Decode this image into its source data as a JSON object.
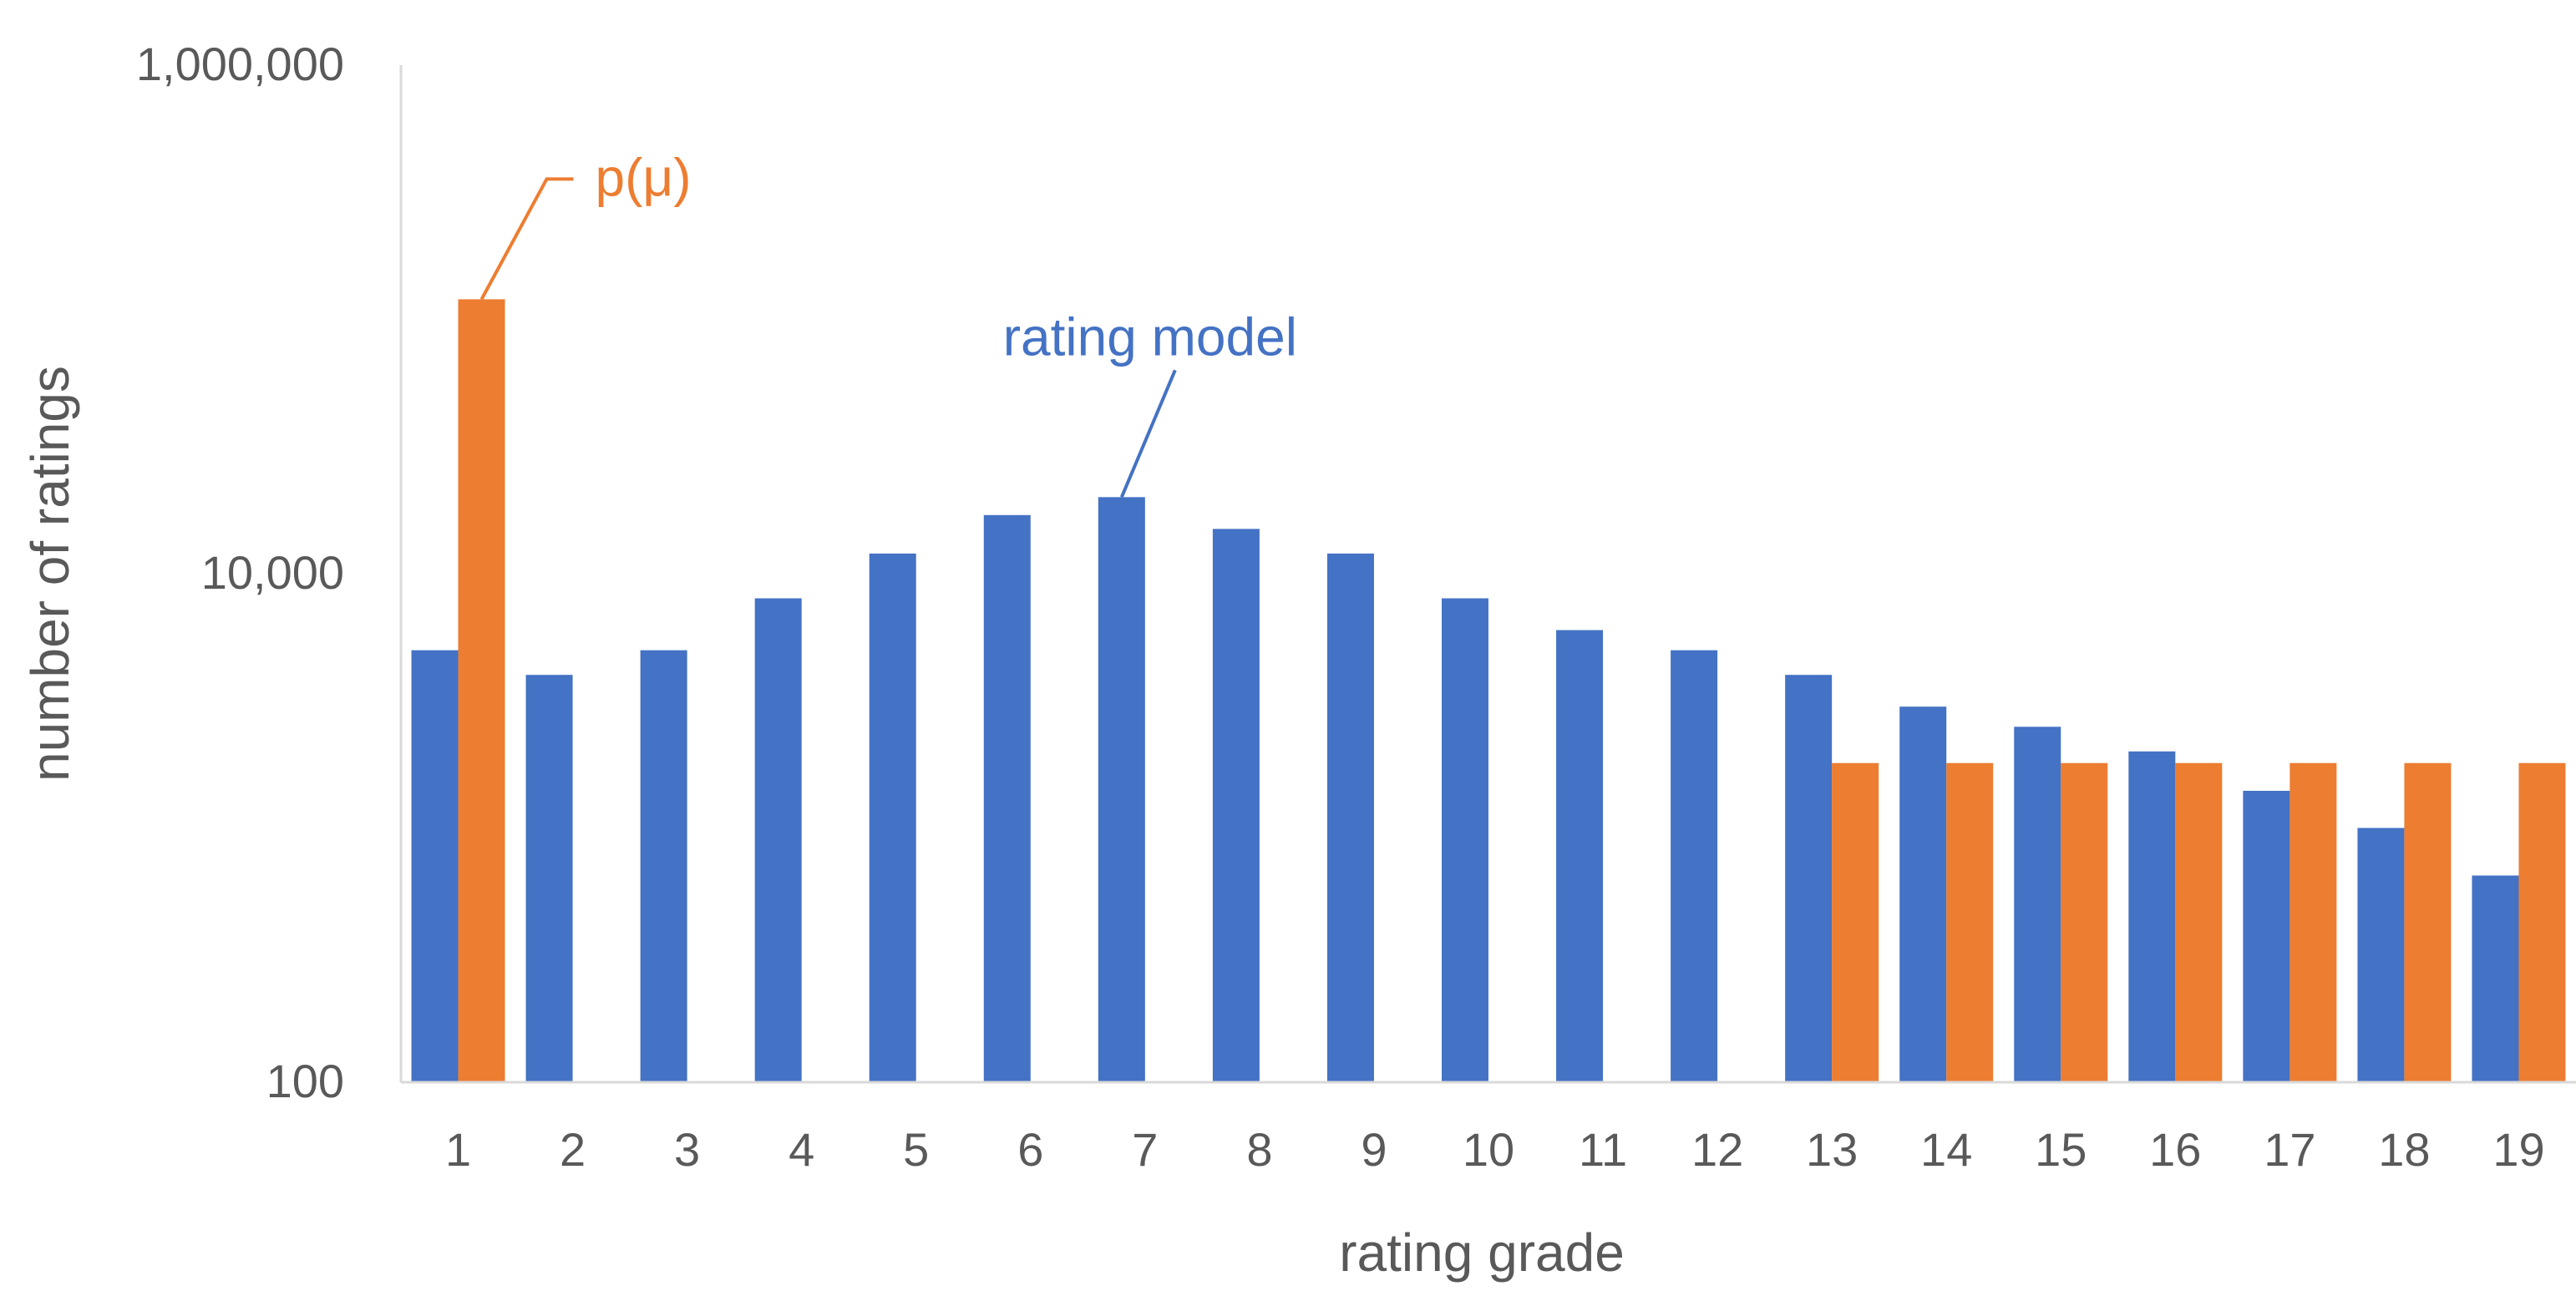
{
  "chart_data": {
    "type": "bar",
    "title": "",
    "xlabel": "rating grade",
    "ylabel": "number of ratings",
    "yscale": "log",
    "ylim": [
      100,
      1000000
    ],
    "yticks": [
      {
        "value": 100,
        "label": "100"
      },
      {
        "value": 10000,
        "label": "10,000"
      },
      {
        "value": 1000000,
        "label": "1,000,000"
      }
    ],
    "grid": false,
    "legend": "none",
    "categories": [
      "1",
      "2",
      "3",
      "4",
      "5",
      "6",
      "7",
      "8",
      "9",
      "10",
      "11",
      "12",
      "13",
      "14",
      "15",
      "16",
      "17",
      "18",
      "19"
    ],
    "series": [
      {
        "name": "rating model",
        "color": "#4472C4",
        "values": [
          5000,
          4000,
          5000,
          8000,
          12000,
          17000,
          20000,
          15000,
          12000,
          8000,
          6000,
          5000,
          4000,
          3000,
          2500,
          2000,
          1400,
          1000,
          650
        ]
      },
      {
        "name": "p(μ)",
        "color": "#ED7D31",
        "values": [
          120000,
          null,
          null,
          null,
          null,
          null,
          null,
          null,
          null,
          null,
          null,
          null,
          1800,
          1800,
          1800,
          1800,
          1800,
          1800,
          1800
        ]
      }
    ],
    "annotations": [
      {
        "text": "p(μ)",
        "series": "p(μ)",
        "category": "1",
        "color": "#ED7D31"
      },
      {
        "text": "rating model",
        "series": "rating model",
        "category": "7",
        "color": "#4472C4"
      }
    ]
  }
}
